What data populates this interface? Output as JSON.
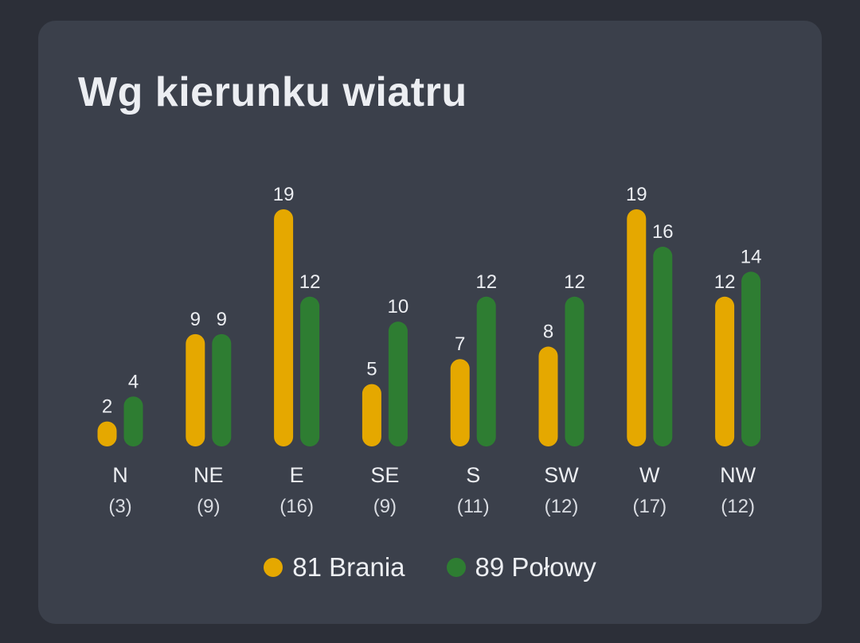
{
  "title": "Wg kierunku wiatru",
  "colors": {
    "background": "#2c2f38",
    "card": "#3b404b",
    "text": "#eceef2",
    "series1": "#e5a800",
    "series2": "#2e7d32"
  },
  "legend": [
    {
      "label": "81 Brania",
      "color": "#e5a800"
    },
    {
      "label": "89 Połowy",
      "color": "#2e7d32"
    }
  ],
  "chart_data": {
    "type": "bar",
    "title": "Wg kierunku wiatru",
    "categories": [
      "N",
      "NE",
      "E",
      "SE",
      "S",
      "SW",
      "W",
      "NW"
    ],
    "category_counts": [
      "(3)",
      "(9)",
      "(16)",
      "(9)",
      "(11)",
      "(12)",
      "(17)",
      "(12)"
    ],
    "series": [
      {
        "name": "81 Brania",
        "color": "#e5a800",
        "values": [
          2,
          9,
          19,
          5,
          7,
          8,
          19,
          12
        ]
      },
      {
        "name": "89 Połowy",
        "color": "#2e7d32",
        "values": [
          4,
          9,
          12,
          10,
          12,
          12,
          16,
          14
        ]
      }
    ],
    "ylim": [
      0,
      19
    ],
    "grid": false,
    "legend_position": "bottom",
    "data_labels": true,
    "xlabel": "",
    "ylabel": ""
  }
}
